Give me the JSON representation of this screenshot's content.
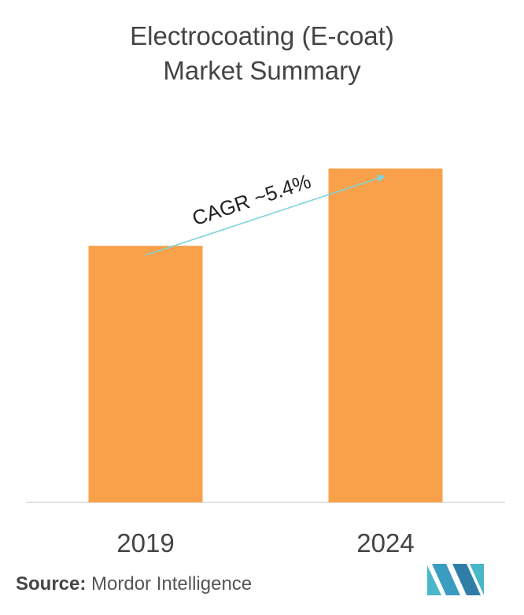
{
  "chart_data": {
    "type": "bar",
    "title_lines": [
      "Electrocoating (E-coat)",
      "Market Summary"
    ],
    "categories": [
      "2019",
      "2024"
    ],
    "values": [
      4.88,
      6.35
    ],
    "value_scale_note": "",
    "ylim": [
      0,
      6.35
    ],
    "grid": false,
    "bar_color": "#F9A04A",
    "annotation": {
      "text": "CAGR ~5.4%",
      "arrow_color": "#7FD3DB"
    }
  },
  "source": {
    "label": "Source:",
    "text": "Mordor Intelligence"
  },
  "logo": {
    "name": "mordor-intelligence-logo",
    "colors": [
      "#4AB7C9",
      "#2F7EA8"
    ]
  }
}
